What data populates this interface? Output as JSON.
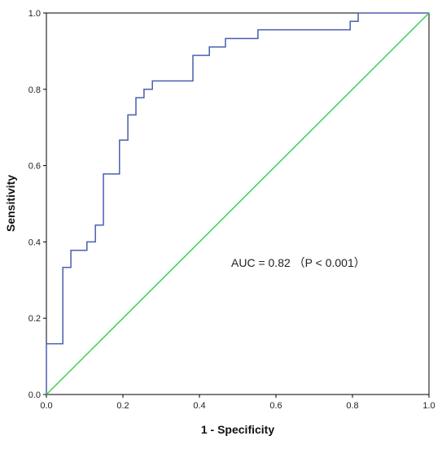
{
  "chart_data": {
    "type": "line",
    "xlabel": "1 - Specificity",
    "ylabel": "Sensitivity",
    "xlim": [
      0,
      1
    ],
    "ylim": [
      0,
      1
    ],
    "x_ticks": [
      "0.0",
      "0.2",
      "0.4",
      "0.6",
      "0.8",
      "1.0"
    ],
    "y_ticks": [
      "0.0",
      "0.2",
      "0.4",
      "0.6",
      "0.8",
      "1.0"
    ],
    "grid": false,
    "annotation": "AUC = 0.82 （P < 0.001）",
    "series": [
      {
        "style": "roc-step",
        "color": "#4a5fae",
        "points": [
          [
            0.0,
            0.0
          ],
          [
            0.0,
            0.133
          ],
          [
            0.043,
            0.133
          ],
          [
            0.043,
            0.333
          ],
          [
            0.064,
            0.333
          ],
          [
            0.064,
            0.378
          ],
          [
            0.106,
            0.378
          ],
          [
            0.106,
            0.4
          ],
          [
            0.128,
            0.4
          ],
          [
            0.128,
            0.444
          ],
          [
            0.149,
            0.444
          ],
          [
            0.149,
            0.578
          ],
          [
            0.191,
            0.578
          ],
          [
            0.191,
            0.667
          ],
          [
            0.213,
            0.667
          ],
          [
            0.213,
            0.733
          ],
          [
            0.234,
            0.733
          ],
          [
            0.234,
            0.778
          ],
          [
            0.255,
            0.778
          ],
          [
            0.255,
            0.8
          ],
          [
            0.277,
            0.8
          ],
          [
            0.277,
            0.822
          ],
          [
            0.383,
            0.822
          ],
          [
            0.383,
            0.889
          ],
          [
            0.426,
            0.889
          ],
          [
            0.426,
            0.911
          ],
          [
            0.468,
            0.911
          ],
          [
            0.468,
            0.933
          ],
          [
            0.553,
            0.933
          ],
          [
            0.553,
            0.956
          ],
          [
            0.794,
            0.956
          ],
          [
            0.794,
            0.978
          ],
          [
            0.815,
            0.978
          ],
          [
            0.815,
            1.0
          ],
          [
            1.0,
            1.0
          ]
        ]
      },
      {
        "style": "reference-diagonal",
        "color": "#3ecf57",
        "points": [
          [
            0,
            0
          ],
          [
            1,
            1
          ]
        ]
      }
    ]
  }
}
